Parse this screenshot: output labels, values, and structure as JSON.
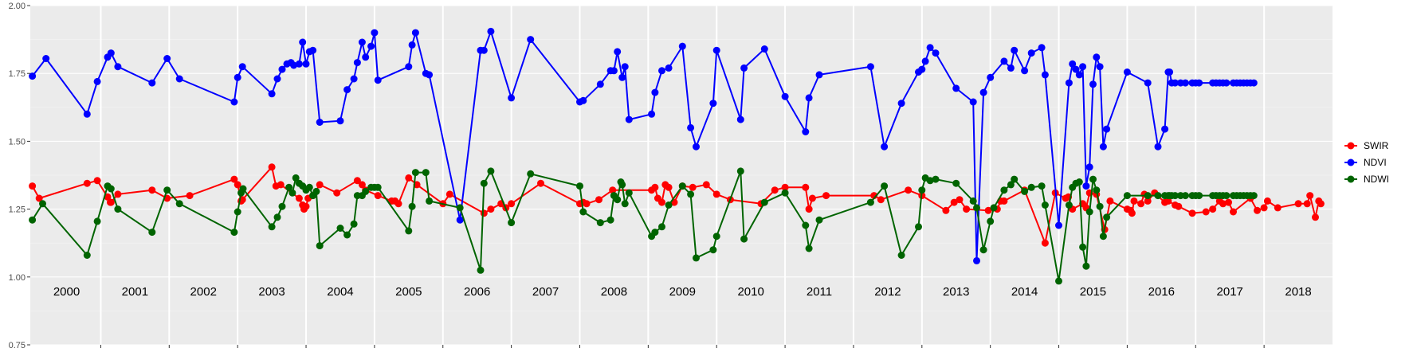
{
  "chart_data": {
    "type": "line",
    "title": "",
    "xlabel": "",
    "ylabel": "",
    "ylim": [
      0.75,
      2.0
    ],
    "xlim": [
      1999.97,
      2019.0
    ],
    "y_ticks": [
      "0.75",
      "1.00",
      "1.25",
      "1.50",
      "1.75",
      "2.00"
    ],
    "y_tick_values": [
      0.75,
      1.0,
      1.25,
      1.5,
      1.75,
      2.0
    ],
    "year_labels": [
      "2000",
      "2001",
      "2002",
      "2003",
      "2004",
      "2005",
      "2006",
      "2007",
      "2008",
      "2009",
      "2010",
      "2011",
      "2012",
      "2013",
      "2014",
      "2015",
      "2016",
      "2017",
      "2018"
    ],
    "grid": true,
    "legend_position": "right",
    "series": [
      {
        "name": "SWIR",
        "color": "#ff0000",
        "x": [
          2000.0,
          2000.1,
          2000.8,
          2000.95,
          2001.1,
          2001.14,
          2001.15,
          2001.25,
          2001.75,
          2001.97,
          2002.3,
          2002.95,
          2003.0,
          2003.05,
          2003.07,
          2003.5,
          2003.56,
          2003.63,
          2003.9,
          2003.95,
          2003.97,
          2004.0,
          2004.03,
          2004.1,
          2004.2,
          2004.45,
          2004.75,
          2004.82,
          2004.87,
          2005.05,
          2005.25,
          2005.3,
          2005.35,
          2005.5,
          2005.62,
          2006.0,
          2006.1,
          2006.6,
          2006.7,
          2006.85,
          2006.92,
          2007.0,
          2007.43,
          2008.0,
          2008.05,
          2008.1,
          2008.28,
          2008.48,
          2009.05,
          2009.1,
          2009.14,
          2009.2,
          2009.25,
          2009.3,
          2009.38,
          2009.5,
          2009.65,
          2009.85,
          2010.0,
          2010.2,
          2010.65,
          2010.85,
          2011.0,
          2011.3,
          2011.35,
          2011.4,
          2011.6,
          2012.3,
          2012.4,
          2012.8,
          2013.0,
          2013.35,
          2013.47,
          2013.55,
          2013.65,
          2013.97,
          2014.1,
          2014.15,
          2014.2,
          2014.5,
          2014.8,
          2014.95,
          2015.1,
          2015.14,
          2015.2,
          2015.35,
          2015.4,
          2015.45,
          2015.55,
          2015.67,
          2015.75,
          2016.0,
          2016.05,
          2016.07,
          2016.1,
          2016.2,
          2016.25,
          2016.3,
          2016.4,
          2016.55,
          2016.6,
          2016.7,
          2016.75,
          2016.95,
          2017.15,
          2017.25,
          2017.35,
          2017.4,
          2017.48,
          2017.55,
          2017.8,
          2017.9,
          2018.0,
          2018.05,
          2018.2,
          2018.5,
          2018.63,
          2018.67,
          2018.75,
          2018.8,
          2018.83
        ],
        "y": [
          1.335,
          1.29,
          1.345,
          1.355,
          1.295,
          1.275,
          1.275,
          1.305,
          1.32,
          1.29,
          1.3,
          1.36,
          1.34,
          1.28,
          1.285,
          1.405,
          1.335,
          1.34,
          1.29,
          1.265,
          1.25,
          1.26,
          1.29,
          1.3,
          1.34,
          1.31,
          1.355,
          1.34,
          1.32,
          1.3,
          1.28,
          1.28,
          1.27,
          1.365,
          1.34,
          1.27,
          1.305,
          1.235,
          1.25,
          1.27,
          1.255,
          1.27,
          1.345,
          1.27,
          1.275,
          1.27,
          1.285,
          1.32,
          1.32,
          1.33,
          1.29,
          1.275,
          1.34,
          1.33,
          1.275,
          1.335,
          1.33,
          1.34,
          1.305,
          1.285,
          1.27,
          1.32,
          1.33,
          1.33,
          1.25,
          1.29,
          1.3,
          1.3,
          1.285,
          1.32,
          1.3,
          1.245,
          1.275,
          1.285,
          1.25,
          1.245,
          1.25,
          1.28,
          1.28,
          1.32,
          1.125,
          1.31,
          1.29,
          1.295,
          1.25,
          1.27,
          1.255,
          1.31,
          1.305,
          1.175,
          1.28,
          1.25,
          1.245,
          1.235,
          1.28,
          1.27,
          1.305,
          1.28,
          1.31,
          1.275,
          1.28,
          1.265,
          1.26,
          1.235,
          1.24,
          1.25,
          1.28,
          1.27,
          1.275,
          1.24,
          1.29,
          1.245,
          1.255,
          1.28,
          1.255,
          1.27,
          1.27,
          1.3,
          1.22,
          1.28,
          1.27
        ]
      },
      {
        "name": "NDVI",
        "color": "#0000ff",
        "x": [
          2000.0,
          2000.2,
          2000.8,
          2000.95,
          2001.1,
          2001.15,
          2001.25,
          2001.75,
          2001.97,
          2002.15,
          2002.95,
          2003.0,
          2003.07,
          2003.5,
          2003.58,
          2003.65,
          2003.72,
          2003.78,
          2003.82,
          2003.9,
          2003.95,
          2004.0,
          2004.05,
          2004.1,
          2004.2,
          2004.5,
          2004.6,
          2004.7,
          2004.75,
          2004.82,
          2004.87,
          2004.95,
          2005.0,
          2005.05,
          2005.5,
          2005.55,
          2005.6,
          2005.75,
          2005.8,
          2006.25,
          2006.55,
          2006.6,
          2006.7,
          2007.0,
          2007.28,
          2008.0,
          2008.05,
          2008.3,
          2008.45,
          2008.5,
          2008.55,
          2008.62,
          2008.66,
          2008.72,
          2009.05,
          2009.1,
          2009.2,
          2009.3,
          2009.5,
          2009.62,
          2009.7,
          2009.95,
          2010.0,
          2010.35,
          2010.4,
          2010.7,
          2011.0,
          2011.3,
          2011.35,
          2011.5,
          2012.25,
          2012.45,
          2012.7,
          2012.95,
          2013.0,
          2013.05,
          2013.12,
          2013.2,
          2013.5,
          2013.75,
          2013.8,
          2013.9,
          2014.0,
          2014.2,
          2014.3,
          2014.35,
          2014.5,
          2014.6,
          2014.75,
          2014.8,
          2015.0,
          2015.15,
          2015.2,
          2015.25,
          2015.3,
          2015.35,
          2015.4,
          2015.45,
          2015.5,
          2015.55,
          2015.6,
          2015.65,
          2015.7,
          2016.0,
          2016.3,
          2016.45,
          2016.55,
          2016.6,
          2016.62,
          2016.65,
          2016.7,
          2016.78,
          2016.85,
          2016.95,
          2017.0,
          2017.05,
          2017.25,
          2017.3,
          2017.35,
          2017.4,
          2017.45,
          2017.55,
          2017.6,
          2017.65,
          2017.7,
          2017.75,
          2017.8,
          2017.85
        ],
        "y": [
          1.74,
          1.805,
          1.6,
          1.72,
          1.81,
          1.825,
          1.775,
          1.715,
          1.805,
          1.73,
          1.645,
          1.735,
          1.775,
          1.675,
          1.73,
          1.765,
          1.785,
          1.79,
          1.78,
          1.785,
          1.865,
          1.785,
          1.83,
          1.835,
          1.57,
          1.575,
          1.69,
          1.73,
          1.79,
          1.865,
          1.81,
          1.85,
          1.9,
          1.725,
          1.775,
          1.855,
          1.9,
          1.75,
          1.745,
          1.21,
          1.835,
          1.835,
          1.905,
          1.66,
          1.875,
          1.645,
          1.65,
          1.71,
          1.76,
          1.76,
          1.83,
          1.735,
          1.775,
          1.58,
          1.6,
          1.68,
          1.76,
          1.77,
          1.85,
          1.55,
          1.48,
          1.64,
          1.835,
          1.58,
          1.77,
          1.84,
          1.665,
          1.535,
          1.66,
          1.745,
          1.775,
          1.48,
          1.64,
          1.755,
          1.765,
          1.795,
          1.845,
          1.825,
          1.695,
          1.645,
          1.06,
          1.68,
          1.735,
          1.795,
          1.77,
          1.835,
          1.76,
          1.825,
          1.845,
          1.745,
          1.19,
          1.715,
          1.785,
          1.765,
          1.745,
          1.775,
          1.335,
          1.405,
          1.71,
          1.81,
          1.775,
          1.48,
          1.545,
          1.755,
          1.715,
          1.48,
          1.545,
          1.755,
          1.755,
          1.715,
          1.715,
          1.715,
          1.715,
          1.715,
          1.715,
          1.715,
          1.715,
          1.715,
          1.715,
          1.715,
          1.715,
          1.715,
          1.715,
          1.715,
          1.715,
          1.715,
          1.715,
          1.715
        ]
      },
      {
        "name": "NDWI",
        "color": "#006400",
        "x": [
          2000.0,
          2000.15,
          2000.8,
          2000.95,
          2001.1,
          2001.15,
          2001.25,
          2001.75,
          2001.97,
          2002.15,
          2002.95,
          2003.0,
          2003.05,
          2003.08,
          2003.5,
          2003.58,
          2003.65,
          2003.75,
          2003.8,
          2003.85,
          2003.9,
          2003.95,
          2004.0,
          2004.05,
          2004.1,
          2004.15,
          2004.2,
          2004.5,
          2004.6,
          2004.7,
          2004.75,
          2004.82,
          2004.87,
          2004.95,
          2005.0,
          2005.05,
          2005.5,
          2005.55,
          2005.6,
          2005.75,
          2005.8,
          2006.25,
          2006.55,
          2006.6,
          2006.7,
          2007.0,
          2007.28,
          2008.0,
          2008.05,
          2008.3,
          2008.45,
          2008.5,
          2008.55,
          2008.6,
          2008.62,
          2008.66,
          2008.72,
          2009.05,
          2009.1,
          2009.2,
          2009.3,
          2009.5,
          2009.62,
          2009.7,
          2009.95,
          2010.0,
          2010.35,
          2010.4,
          2010.7,
          2011.0,
          2011.3,
          2011.35,
          2011.5,
          2012.25,
          2012.45,
          2012.7,
          2012.95,
          2013.0,
          2013.05,
          2013.12,
          2013.2,
          2013.5,
          2013.75,
          2013.8,
          2013.9,
          2014.0,
          2014.05,
          2014.2,
          2014.3,
          2014.35,
          2014.5,
          2014.6,
          2014.75,
          2014.8,
          2015.0,
          2015.15,
          2015.2,
          2015.25,
          2015.3,
          2015.35,
          2015.4,
          2015.45,
          2015.5,
          2015.55,
          2015.6,
          2015.65,
          2015.7,
          2016.0,
          2016.3,
          2016.45,
          2016.55,
          2016.6,
          2016.62,
          2016.65,
          2016.7,
          2016.78,
          2016.85,
          2016.95,
          2017.0,
          2017.05,
          2017.25,
          2017.3,
          2017.35,
          2017.4,
          2017.45,
          2017.55,
          2017.6,
          2017.65,
          2017.7,
          2017.75,
          2017.8,
          2017.85
        ],
        "y": [
          1.21,
          1.27,
          1.08,
          1.205,
          1.335,
          1.325,
          1.25,
          1.165,
          1.32,
          1.27,
          1.165,
          1.24,
          1.31,
          1.325,
          1.185,
          1.22,
          1.26,
          1.33,
          1.31,
          1.365,
          1.345,
          1.335,
          1.32,
          1.33,
          1.3,
          1.315,
          1.115,
          1.18,
          1.155,
          1.195,
          1.3,
          1.3,
          1.315,
          1.33,
          1.33,
          1.33,
          1.17,
          1.26,
          1.385,
          1.385,
          1.28,
          1.255,
          1.025,
          1.345,
          1.39,
          1.2,
          1.38,
          1.335,
          1.24,
          1.2,
          1.21,
          1.3,
          1.285,
          1.35,
          1.34,
          1.27,
          1.31,
          1.15,
          1.165,
          1.185,
          1.265,
          1.335,
          1.305,
          1.07,
          1.1,
          1.15,
          1.39,
          1.14,
          1.275,
          1.31,
          1.19,
          1.105,
          1.21,
          1.275,
          1.335,
          1.08,
          1.185,
          1.32,
          1.365,
          1.355,
          1.36,
          1.345,
          1.28,
          1.255,
          1.1,
          1.205,
          1.255,
          1.32,
          1.34,
          1.36,
          1.315,
          1.33,
          1.335,
          1.265,
          0.985,
          1.265,
          1.33,
          1.345,
          1.35,
          1.11,
          1.04,
          1.24,
          1.36,
          1.32,
          1.26,
          1.15,
          1.22,
          1.3,
          1.3,
          1.3,
          1.3,
          1.3,
          1.3,
          1.3,
          1.3,
          1.3,
          1.3,
          1.3,
          1.3,
          1.3,
          1.3,
          1.3,
          1.3,
          1.3,
          1.3,
          1.3,
          1.3,
          1.3,
          1.3,
          1.3,
          1.3,
          1.3
        ]
      }
    ]
  }
}
